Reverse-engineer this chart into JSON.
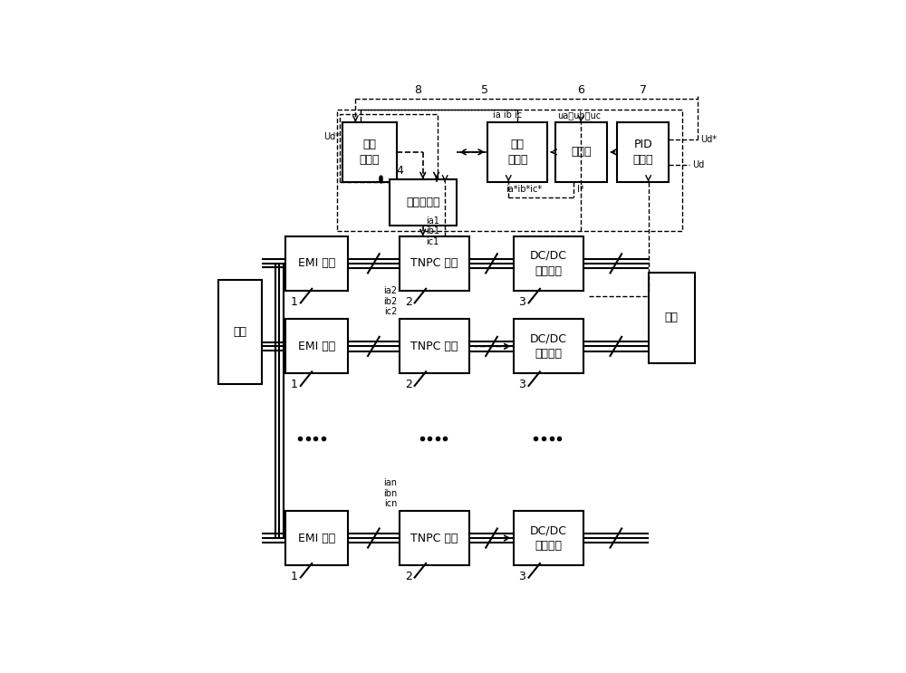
{
  "bg_color": "#ffffff",
  "fig_width": 10.0,
  "fig_height": 7.43,
  "blk": {
    "diangrid": [
      0.025,
      0.415,
      0.085,
      0.2
    ],
    "emi1": [
      0.155,
      0.595,
      0.12,
      0.105
    ],
    "emi2": [
      0.155,
      0.435,
      0.12,
      0.105
    ],
    "emin": [
      0.155,
      0.065,
      0.12,
      0.105
    ],
    "tnpc1": [
      0.375,
      0.595,
      0.135,
      0.105
    ],
    "tnpc2": [
      0.375,
      0.435,
      0.135,
      0.105
    ],
    "tnpcn": [
      0.375,
      0.065,
      0.135,
      0.105
    ],
    "dcdc1": [
      0.595,
      0.595,
      0.135,
      0.105
    ],
    "dcdc2": [
      0.595,
      0.435,
      0.135,
      0.105
    ],
    "dcdcn": [
      0.595,
      0.065,
      0.135,
      0.105
    ],
    "fuzai": [
      0.855,
      0.455,
      0.09,
      0.175
    ],
    "huanliu": [
      0.265,
      0.805,
      0.105,
      0.115
    ],
    "siqu": [
      0.355,
      0.72,
      0.13,
      0.09
    ],
    "huanhuan": [
      0.545,
      0.805,
      0.115,
      0.115
    ],
    "chenfa": [
      0.675,
      0.805,
      0.1,
      0.115
    ],
    "pid": [
      0.795,
      0.805,
      0.1,
      0.115
    ]
  },
  "labels": {
    "diangrid": "电网",
    "emi1": "EMI 滤波",
    "emi2": "EMI 滤波",
    "emin": "EMI 滤波",
    "tnpc1": "TNPC 电路",
    "tnpc2": "TNPC 电路",
    "tnpcn": "TNPC 电路",
    "dcdc1": "DC/DC\n变换电路",
    "dcdc2": "DC/DC\n变换电路",
    "dcdcn": "DC/DC\n变换电路",
    "fuzai": "负载",
    "huanliu": "环流\n控制器",
    "siqu": "死区控制器",
    "huanhuan": "滨环\n比较器",
    "chenfa": "乘法器",
    "pid": "PID\n控制器"
  }
}
